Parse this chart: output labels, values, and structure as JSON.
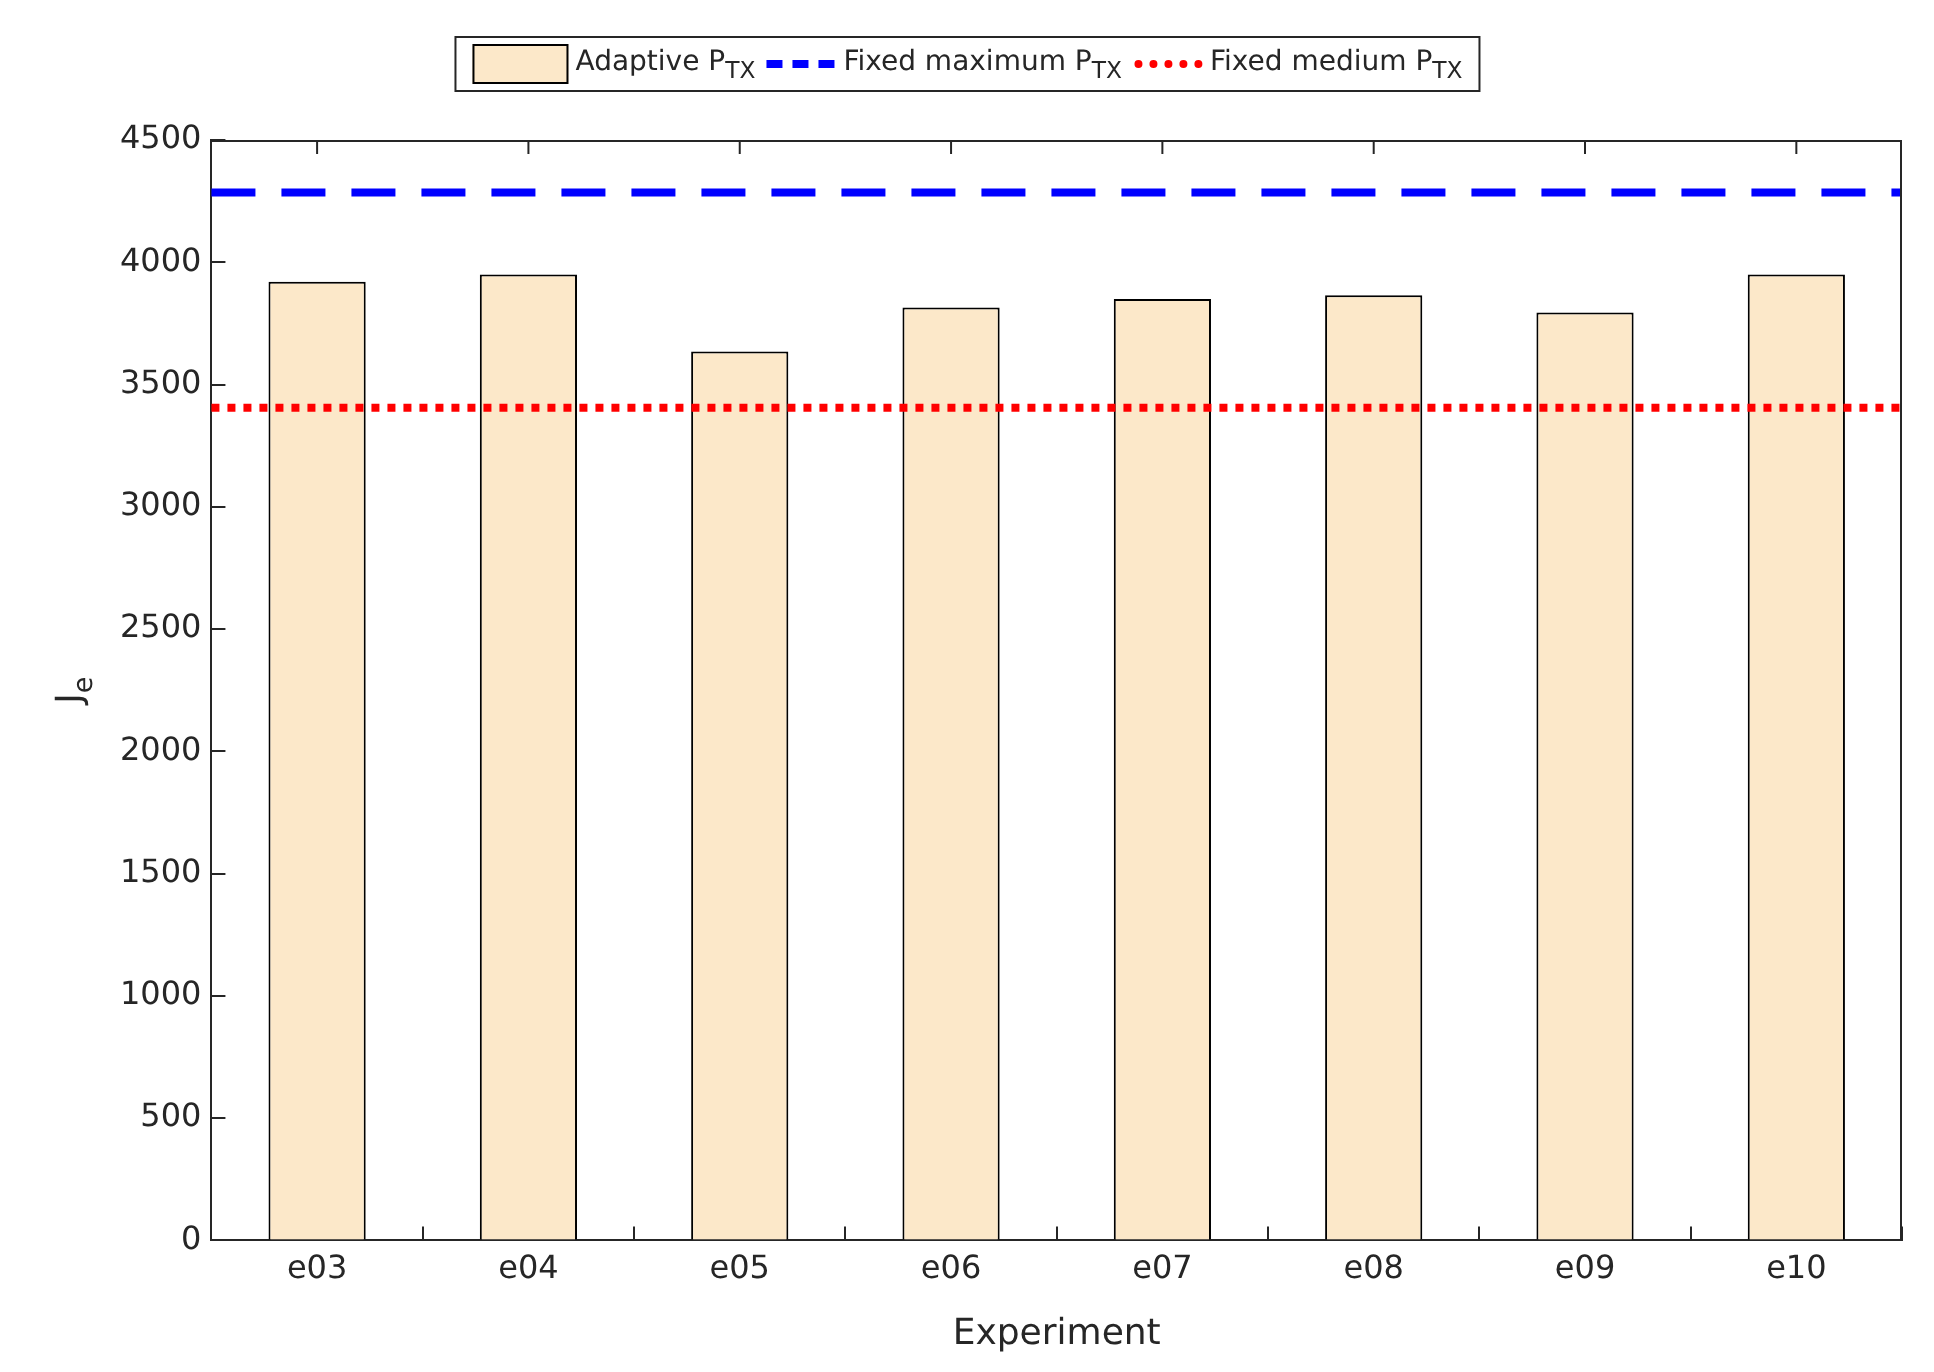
{
  "chart_data": {
    "type": "bar",
    "xlabel": "Experiment",
    "ylabel": "J$_{e}$",
    "categories": [
      "e03",
      "e04",
      "e05",
      "e06",
      "e07",
      "e08",
      "e09",
      "e10"
    ],
    "series": [
      {
        "name": "Adaptive P$_{TX}$",
        "color": "#fce8c9",
        "values": [
          3920,
          3950,
          3635,
          3815,
          3850,
          3865,
          3795,
          3950
        ]
      }
    ],
    "ylim": [
      0,
      4500
    ],
    "yticks": [
      0,
      500,
      1000,
      1500,
      2000,
      2500,
      3000,
      3500,
      4000,
      4500
    ],
    "grid": false,
    "legend": "top",
    "ref_lines": [
      {
        "axis": "y",
        "value": 4285,
        "label": "Fixed maximum P$_{TX}$",
        "color": "#0000ff",
        "line_style": "dashed"
      },
      {
        "axis": "y",
        "value": 3405,
        "label": "Fixed medium P$_{TX}$",
        "color": "#ff0000",
        "line_style": "dotted"
      }
    ]
  }
}
